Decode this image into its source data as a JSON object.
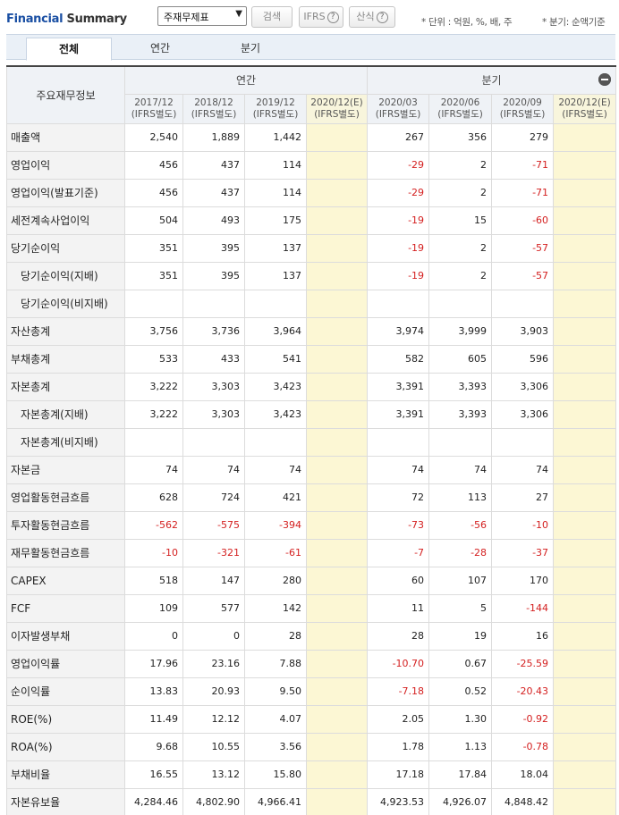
{
  "header": {
    "title_part1": "Financial",
    "title_part2": "Summary",
    "select_value": "주재무제표",
    "search_label": "검색",
    "ifrs_label": "IFRS",
    "formula_label": "산식",
    "help_glyph": "?",
    "unit_note": "* 단위 : 억원, %, 배, 주",
    "quarter_note": "* 분기: 순액기준"
  },
  "tabs": [
    "전체",
    "연간",
    "분기"
  ],
  "table": {
    "corner_label": "주요재무정보",
    "group_annual": "연간",
    "group_quarter": "분기",
    "periods": [
      {
        "date": "2017/12",
        "basis": "(IFRS별도)"
      },
      {
        "date": "2018/12",
        "basis": "(IFRS별도)"
      },
      {
        "date": "2019/12",
        "basis": "(IFRS별도)"
      },
      {
        "date": "2020/12(E)",
        "basis": "(IFRS별도)"
      },
      {
        "date": "2020/03",
        "basis": "(IFRS별도)"
      },
      {
        "date": "2020/06",
        "basis": "(IFRS별도)"
      },
      {
        "date": "2020/09",
        "basis": "(IFRS별도)"
      },
      {
        "date": "2020/12(E)",
        "basis": "(IFRS별도)"
      }
    ],
    "rows": [
      {
        "label": "매출액",
        "sub": false,
        "values": [
          "2,540",
          "1,889",
          "1,442",
          "",
          "267",
          "356",
          "279",
          ""
        ]
      },
      {
        "label": "영업이익",
        "sub": false,
        "values": [
          "456",
          "437",
          "114",
          "",
          "-29",
          "2",
          "-71",
          ""
        ]
      },
      {
        "label": "영업이익(발표기준)",
        "sub": false,
        "values": [
          "456",
          "437",
          "114",
          "",
          "-29",
          "2",
          "-71",
          ""
        ]
      },
      {
        "label": "세전계속사업이익",
        "sub": false,
        "values": [
          "504",
          "493",
          "175",
          "",
          "-19",
          "15",
          "-60",
          ""
        ]
      },
      {
        "label": "당기순이익",
        "sub": false,
        "values": [
          "351",
          "395",
          "137",
          "",
          "-19",
          "2",
          "-57",
          ""
        ]
      },
      {
        "label": "당기순이익(지배)",
        "sub": true,
        "values": [
          "351",
          "395",
          "137",
          "",
          "-19",
          "2",
          "-57",
          ""
        ]
      },
      {
        "label": "당기순이익(비지배)",
        "sub": true,
        "values": [
          "",
          "",
          "",
          "",
          "",
          "",
          "",
          ""
        ]
      },
      {
        "label": "자산총계",
        "sub": false,
        "values": [
          "3,756",
          "3,736",
          "3,964",
          "",
          "3,974",
          "3,999",
          "3,903",
          ""
        ]
      },
      {
        "label": "부채총계",
        "sub": false,
        "values": [
          "533",
          "433",
          "541",
          "",
          "582",
          "605",
          "596",
          ""
        ]
      },
      {
        "label": "자본총계",
        "sub": false,
        "values": [
          "3,222",
          "3,303",
          "3,423",
          "",
          "3,391",
          "3,393",
          "3,306",
          ""
        ]
      },
      {
        "label": "자본총계(지배)",
        "sub": true,
        "values": [
          "3,222",
          "3,303",
          "3,423",
          "",
          "3,391",
          "3,393",
          "3,306",
          ""
        ]
      },
      {
        "label": "자본총계(비지배)",
        "sub": true,
        "values": [
          "",
          "",
          "",
          "",
          "",
          "",
          "",
          ""
        ]
      },
      {
        "label": "자본금",
        "sub": false,
        "values": [
          "74",
          "74",
          "74",
          "",
          "74",
          "74",
          "74",
          ""
        ]
      },
      {
        "label": "영업활동현금흐름",
        "sub": false,
        "values": [
          "628",
          "724",
          "421",
          "",
          "72",
          "113",
          "27",
          ""
        ]
      },
      {
        "label": "투자활동현금흐름",
        "sub": false,
        "values": [
          "-562",
          "-575",
          "-394",
          "",
          "-73",
          "-56",
          "-10",
          ""
        ]
      },
      {
        "label": "재무활동현금흐름",
        "sub": false,
        "values": [
          "-10",
          "-321",
          "-61",
          "",
          "-7",
          "-28",
          "-37",
          ""
        ]
      },
      {
        "label": "CAPEX",
        "sub": false,
        "values": [
          "518",
          "147",
          "280",
          "",
          "60",
          "107",
          "170",
          ""
        ]
      },
      {
        "label": "FCF",
        "sub": false,
        "values": [
          "109",
          "577",
          "142",
          "",
          "11",
          "5",
          "-144",
          ""
        ]
      },
      {
        "label": "이자발생부채",
        "sub": false,
        "values": [
          "0",
          "0",
          "28",
          "",
          "28",
          "19",
          "16",
          ""
        ]
      },
      {
        "label": "영업이익률",
        "sub": false,
        "values": [
          "17.96",
          "23.16",
          "7.88",
          "",
          "-10.70",
          "0.67",
          "-25.59",
          ""
        ]
      },
      {
        "label": "순이익률",
        "sub": false,
        "values": [
          "13.83",
          "20.93",
          "9.50",
          "",
          "-7.18",
          "0.52",
          "-20.43",
          ""
        ]
      },
      {
        "label": "ROE(%)",
        "sub": false,
        "values": [
          "11.49",
          "12.12",
          "4.07",
          "",
          "2.05",
          "1.30",
          "-0.92",
          ""
        ]
      },
      {
        "label": "ROA(%)",
        "sub": false,
        "values": [
          "9.68",
          "10.55",
          "3.56",
          "",
          "1.78",
          "1.13",
          "-0.78",
          ""
        ]
      },
      {
        "label": "부채비율",
        "sub": false,
        "values": [
          "16.55",
          "13.12",
          "15.80",
          "",
          "17.18",
          "17.84",
          "18.04",
          ""
        ]
      },
      {
        "label": "자본유보율",
        "sub": false,
        "values": [
          "4,284.46",
          "4,802.90",
          "4,966.41",
          "",
          "4,923.53",
          "4,926.07",
          "4,848.42",
          ""
        ]
      }
    ]
  },
  "colors": {
    "estimate_bg": "#fcf7d4",
    "negative": "#d42020",
    "title_blue": "#1a4fa3"
  }
}
